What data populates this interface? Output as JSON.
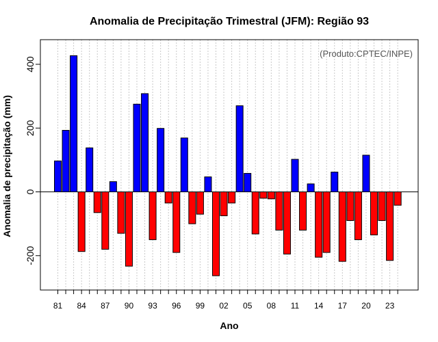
{
  "chart_data": {
    "type": "bar",
    "title": "Anomalia de Precipitação Trimestral (JFM): Região 93",
    "xlabel": "Ano",
    "ylabel": "Anomalia de precipitação (mm)",
    "credit": "(Produto:CPTEC/INPE)",
    "ylim": [
      -310,
      480
    ],
    "yticks": [
      -200,
      0,
      200,
      400
    ],
    "ytick_labels": [
      "-200",
      "0",
      "200",
      "400"
    ],
    "years": [
      1981,
      1982,
      1983,
      1984,
      1985,
      1986,
      1987,
      1988,
      1989,
      1990,
      1991,
      1992,
      1993,
      1994,
      1995,
      1996,
      1997,
      1998,
      1999,
      2000,
      2001,
      2002,
      2003,
      2004,
      2005,
      2006,
      2007,
      2008,
      2009,
      2010,
      2011,
      2012,
      2013,
      2014,
      2015,
      2016,
      2017,
      2018,
      2019,
      2020,
      2021,
      2022,
      2023,
      2024
    ],
    "values": [
      97,
      193,
      427,
      -187,
      138,
      -65,
      -180,
      32,
      -130,
      -233,
      275,
      308,
      -150,
      199,
      -35,
      -190,
      169,
      -100,
      -70,
      47,
      -263,
      -75,
      -35,
      270,
      58,
      -132,
      -20,
      -22,
      -120,
      -195,
      102,
      -120,
      25,
      -205,
      -190,
      62,
      -218,
      -90,
      -150,
      115,
      -135,
      -90,
      -215,
      -42
    ],
    "xtick_labels": [
      "81",
      "84",
      "87",
      "90",
      "93",
      "96",
      "99",
      "02",
      "05",
      "08",
      "11",
      "14",
      "17",
      "20",
      "23"
    ],
    "positive_color": "#0000ff",
    "negative_color": "#ff0000",
    "grid": true
  }
}
